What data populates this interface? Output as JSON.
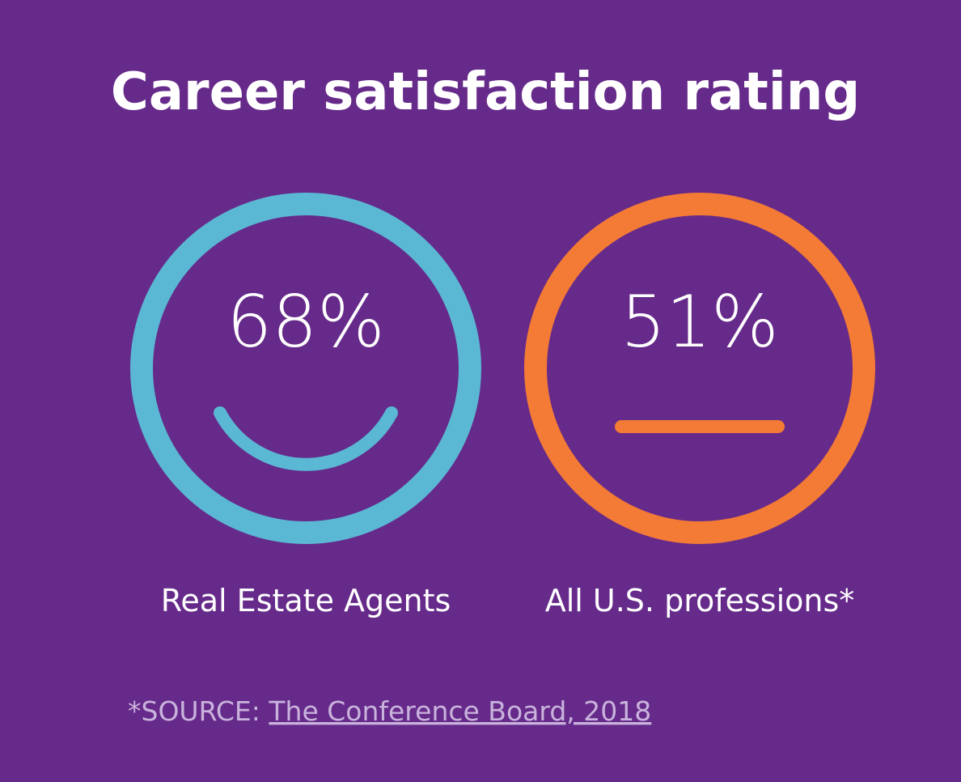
{
  "title": "Career satisfaction rating",
  "items": [
    {
      "value": "68%",
      "label": "Real Estate Agents",
      "color": "#5bb8d4",
      "face": "smile"
    },
    {
      "value": "51%",
      "label": "All U.S. professions*",
      "color": "#f47b35",
      "face": "neutral"
    }
  ],
  "source": {
    "prefix": "*SOURCE:",
    "link": "The Conference Board, 2018"
  }
}
